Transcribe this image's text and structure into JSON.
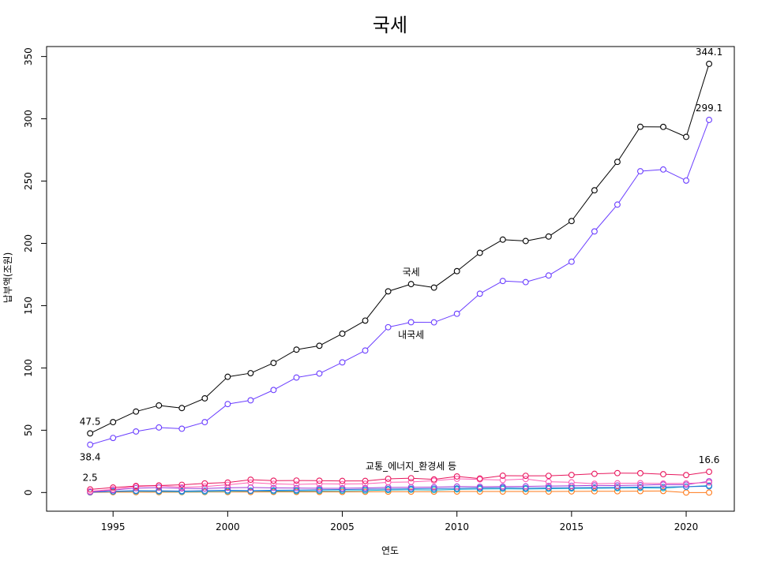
{
  "chart_data": {
    "type": "line",
    "title": "국세",
    "xlabel": "연도",
    "ylabel": "납부액(조원)",
    "xlim": [
      1992.1,
      2022.1
    ],
    "ylim": [
      -15,
      358
    ],
    "x_ticks": [
      1995,
      2000,
      2005,
      2010,
      2015,
      2020
    ],
    "y_ticks": [
      0,
      50,
      100,
      150,
      200,
      250,
      300,
      350
    ],
    "grid": false,
    "legend": "none",
    "x": [
      1994,
      1995,
      1996,
      1997,
      1998,
      1999,
      2000,
      2001,
      2002,
      2003,
      2004,
      2005,
      2006,
      2007,
      2008,
      2009,
      2010,
      2011,
      2012,
      2013,
      2014,
      2015,
      2016,
      2017,
      2018,
      2019,
      2020,
      2021
    ],
    "series": [
      {
        "color": "#000000",
        "values": [
          47.5,
          56.5,
          65.0,
          69.9,
          67.8,
          75.6,
          92.9,
          95.8,
          104.0,
          114.7,
          117.8,
          127.5,
          138.0,
          161.5,
          167.3,
          164.5,
          177.7,
          192.4,
          203.0,
          201.9,
          205.5,
          217.9,
          242.6,
          265.4,
          293.6,
          293.5,
          285.5,
          344.1
        ]
      },
      {
        "color": "#6a3dff",
        "values": [
          38.4,
          43.8,
          49.0,
          52.2,
          51.2,
          56.5,
          71.0,
          74.0,
          82.3,
          92.3,
          95.5,
          104.5,
          114.0,
          132.7,
          136.7,
          136.6,
          143.5,
          159.6,
          169.8,
          168.9,
          174.2,
          185.3,
          209.6,
          231.1,
          257.9,
          259.3,
          250.4,
          299.1
        ]
      },
      {
        "color": "#e8175d",
        "values": [
          2.5,
          4.0,
          5.2,
          5.6,
          6.2,
          7.3,
          8.0,
          10.3,
          9.5,
          9.6,
          9.5,
          9.3,
          9.3,
          11.0,
          11.5,
          10.5,
          12.9,
          11.2,
          13.5,
          13.4,
          13.4,
          14.1,
          15.0,
          15.6,
          15.5,
          14.7,
          14.0,
          16.6
        ]
      },
      {
        "color": "#ff5fb4",
        "values": [
          1.0,
          2.5,
          4.8,
          5.5,
          4.2,
          4.8,
          6.2,
          8.0,
          7.0,
          6.5,
          7.0,
          6.8,
          7.0,
          8.2,
          8.5,
          9.5,
          11.0,
          10.5,
          10.0,
          10.8,
          8.6,
          8.2,
          7.0,
          7.4,
          7.5,
          7.2,
          7.3,
          8.0
        ]
      },
      {
        "color": "#a33cd6",
        "values": [
          0.5,
          2.0,
          3.5,
          4.0,
          3.3,
          3.2,
          3.8,
          4.0,
          3.7,
          3.6,
          3.4,
          3.4,
          3.6,
          4.1,
          4.2,
          4.3,
          4.8,
          4.6,
          4.8,
          4.9,
          5.2,
          5.4,
          5.7,
          5.6,
          5.9,
          6.4,
          6.3,
          9.0
        ]
      },
      {
        "color": "#2a6fdb",
        "values": [
          0.3,
          1.0,
          1.5,
          1.4,
          1.2,
          1.5,
          1.8,
          1.5,
          1.8,
          2.0,
          2.2,
          2.4,
          2.6,
          2.8,
          3.0,
          3.1,
          3.3,
          3.6,
          3.8,
          3.5,
          3.7,
          3.9,
          4.0,
          4.1,
          4.3,
          4.4,
          4.7,
          5.0
        ]
      },
      {
        "color": "#19b3c4",
        "values": [
          0.2,
          0.8,
          1.0,
          0.9,
          0.6,
          0.8,
          1.0,
          1.2,
          1.1,
          1.2,
          1.3,
          1.4,
          1.6,
          2.0,
          2.2,
          2.0,
          2.5,
          2.8,
          2.9,
          2.8,
          3.0,
          3.2,
          3.4,
          3.5,
          3.7,
          3.5,
          4.6,
          5.6
        ]
      },
      {
        "color": "#ff7a1a",
        "values": [
          0.1,
          0.3,
          0.3,
          0.3,
          0.3,
          0.4,
          0.4,
          0.4,
          0.5,
          0.5,
          0.5,
          0.5,
          0.6,
          0.7,
          0.7,
          0.7,
          0.8,
          0.8,
          0.8,
          0.8,
          0.8,
          0.9,
          1.0,
          1.0,
          1.1,
          1.2,
          0.0,
          0.0
        ]
      }
    ],
    "annotations": [
      {
        "text": "47.5",
        "x": 1994,
        "y": 47.5,
        "pos": "above"
      },
      {
        "text": "38.4",
        "x": 1994,
        "y": 38.4,
        "pos": "below"
      },
      {
        "text": "2.5",
        "x": 1994,
        "y": 2.5,
        "pos": "above"
      },
      {
        "text": "344.1",
        "x": 2021,
        "y": 344.1,
        "pos": "above"
      },
      {
        "text": "299.1",
        "x": 2021,
        "y": 299.1,
        "pos": "above"
      },
      {
        "text": "16.6",
        "x": 2021,
        "y": 16.6,
        "pos": "above"
      },
      {
        "text": "국세",
        "x": 2008,
        "y": 167.3,
        "pos": "above"
      },
      {
        "text": "내국세",
        "x": 2008,
        "y": 136.7,
        "pos": "below"
      },
      {
        "text": "교통_에너지_환경세 등",
        "x": 2008,
        "y": 11.5,
        "pos": "above"
      }
    ]
  }
}
